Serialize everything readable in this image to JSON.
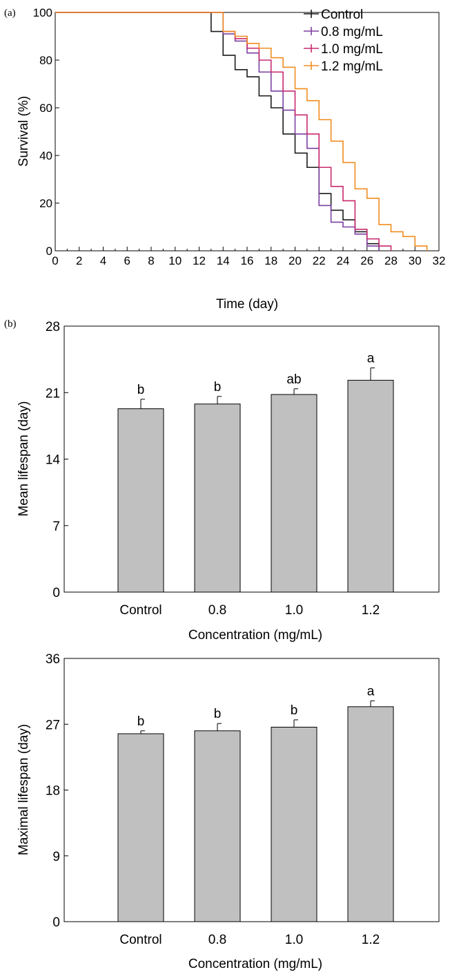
{
  "chart_data": [
    {
      "type": "line",
      "step": true,
      "panel_label": "(a)",
      "xlabel": "Time (day)",
      "ylabel": "Survival (%)",
      "xlim": [
        0,
        32
      ],
      "ylim": [
        0,
        100
      ],
      "xticks": [
        "0",
        "2",
        "4",
        "6",
        "8",
        "10",
        "12",
        "14",
        "16",
        "18",
        "20",
        "22",
        "24",
        "26",
        "28",
        "30",
        "32"
      ],
      "yticks": [
        "0",
        "20",
        "40",
        "60",
        "80",
        "100"
      ],
      "legend_position": "top-right",
      "series": [
        {
          "name": "Control",
          "color": "#1a1a1a",
          "x": [
            0,
            13,
            14,
            15,
            16,
            17,
            18,
            19,
            20,
            21,
            22,
            23,
            24,
            25,
            26,
            27
          ],
          "y": [
            100,
            92,
            82,
            76,
            73,
            65,
            60,
            49,
            41,
            35,
            24,
            17,
            13,
            8,
            3,
            0
          ]
        },
        {
          "name": "0.8 mg/mL",
          "color": "#7b3fa0",
          "x": [
            0,
            14,
            15,
            16,
            17,
            18,
            19,
            20,
            21,
            22,
            23,
            24,
            25,
            26,
            27
          ],
          "y": [
            100,
            91,
            88,
            83,
            75,
            67,
            59,
            49,
            43,
            19,
            12,
            10,
            7,
            2,
            0
          ]
        },
        {
          "name": "1.0 mg/mL",
          "color": "#c8286e",
          "x": [
            0,
            14,
            15,
            16,
            17,
            18,
            19,
            20,
            21,
            22,
            23,
            24,
            25,
            26,
            27,
            28
          ],
          "y": [
            100,
            92,
            89,
            85,
            80,
            75,
            67,
            57,
            49,
            35,
            27,
            21,
            9,
            5,
            2,
            0
          ]
        },
        {
          "name": "1.2 mg/mL",
          "color": "#f08c1e",
          "x": [
            0,
            14,
            15,
            16,
            17,
            18,
            19,
            20,
            21,
            22,
            23,
            24,
            25,
            26,
            27,
            28,
            29,
            30,
            31
          ],
          "y": [
            100,
            92,
            90,
            87,
            85,
            81,
            77,
            68,
            63,
            55,
            46,
            37,
            26,
            22,
            11,
            8,
            6,
            2,
            0
          ]
        }
      ]
    },
    {
      "type": "bar",
      "panel_label": "(b)",
      "categories": [
        "Control",
        "0.8",
        "1.0",
        "1.2"
      ],
      "values": [
        19.3,
        19.8,
        20.8,
        22.3
      ],
      "errors": [
        1.0,
        0.8,
        0.6,
        1.3
      ],
      "annotations": [
        "b",
        "b",
        "ab",
        "a"
      ],
      "xlabel": "Concentration (mg/mL)",
      "ylabel": "Mean lifespan (day)",
      "ylim": [
        0,
        28
      ],
      "yticks": [
        "0",
        "7",
        "14",
        "21",
        "28"
      ],
      "bar_color": "#c0c0c0"
    },
    {
      "type": "bar",
      "categories": [
        "Control",
        "0.8",
        "1.0",
        "1.2"
      ],
      "values": [
        25.7,
        26.1,
        26.6,
        29.4
      ],
      "errors": [
        0.4,
        1.0,
        1.0,
        0.8
      ],
      "annotations": [
        "b",
        "b",
        "b",
        "a"
      ],
      "xlabel": "Concentration (mg/mL)",
      "ylabel": "Maximal lifespan (day)",
      "ylim": [
        0,
        36
      ],
      "yticks": [
        "0",
        "9",
        "18",
        "27",
        "36"
      ],
      "bar_color": "#c0c0c0"
    }
  ]
}
